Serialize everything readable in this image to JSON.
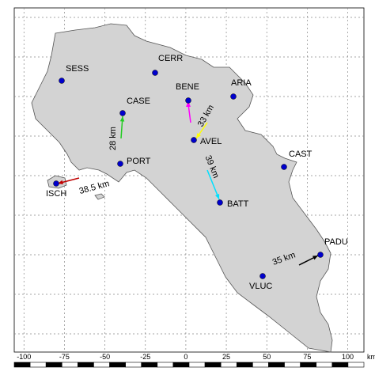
{
  "map": {
    "stations": [
      "SESS",
      "CERR",
      "BENE",
      "ARIA",
      "CASE",
      "AVEL",
      "PORT",
      "CAST",
      "ISCH",
      "BATT",
      "PADU",
      "VLUC"
    ],
    "distances": [
      "38.5 km",
      "28 km",
      "33 km",
      "39 km",
      "35 km"
    ],
    "axis": {
      "xlim": [
        -106,
        110
      ],
      "xticks": [
        -100,
        -75,
        -50,
        -25,
        0,
        25,
        50,
        75,
        100
      ],
      "unit": "km"
    }
  }
}
